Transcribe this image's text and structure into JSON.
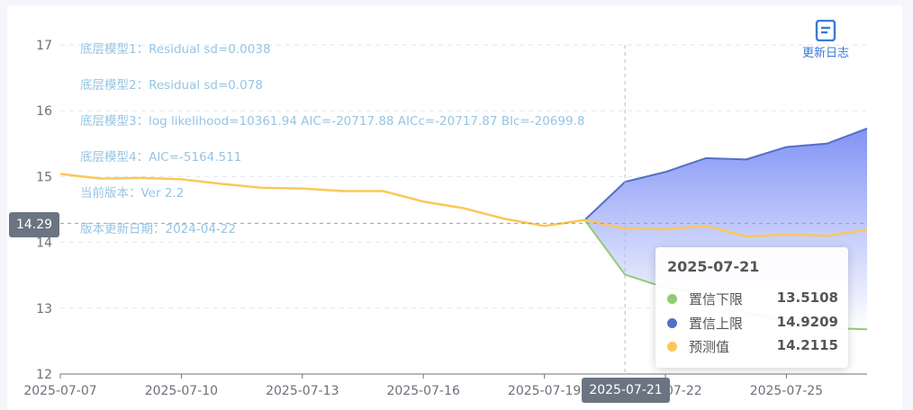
{
  "annotations": {
    "model1": "底层模型1：Residual sd=0.0038",
    "model2": "底层模型2：Residual sd=0.078",
    "model3": "底层模型3：log likelihood=10361.94 AIC=-20717.88 AICc=-20717.87 BIc=-20699.8",
    "model4": "底层模型4：AIC=-5164.511",
    "version": "当前版本：Ver 2.2",
    "update_date": "版本更新日期：2024-04-22"
  },
  "toolbar": {
    "changelog_label": "更新日志",
    "changelog_icon": "document-list-icon"
  },
  "axis_pointer": {
    "y_label": "14.29",
    "x_label": "2025-07-21"
  },
  "tooltip": {
    "title": "2025-07-21",
    "rows": [
      {
        "name": "置信下限",
        "value": "13.5108",
        "color": "#91cc75"
      },
      {
        "name": "置信上限",
        "value": "14.9209",
        "color": "#5470c6"
      },
      {
        "name": "预测值",
        "value": "14.2115",
        "color": "#fac858"
      }
    ]
  },
  "chart_data": {
    "type": "line",
    "x": [
      "2025-07-07",
      "2025-07-08",
      "2025-07-09",
      "2025-07-10",
      "2025-07-11",
      "2025-07-12",
      "2025-07-13",
      "2025-07-14",
      "2025-07-15",
      "2025-07-16",
      "2025-07-17",
      "2025-07-18",
      "2025-07-19",
      "2025-07-20",
      "2025-07-21",
      "2025-07-22",
      "2025-07-23",
      "2025-07-24",
      "2025-07-25",
      "2025-07-26",
      "2025-07-27"
    ],
    "x_tick_labels": [
      "2025-07-07",
      "2025-07-10",
      "2025-07-13",
      "2025-07-16",
      "2025-07-19",
      "2025-07-22",
      "2025-07-25"
    ],
    "ylim": [
      12,
      17
    ],
    "y_ticks": [
      12,
      13,
      14,
      15,
      16,
      17
    ],
    "grid": true,
    "legend": "none",
    "series": [
      {
        "name": "预测值",
        "color": "#fac858",
        "values": [
          15.04,
          14.97,
          14.98,
          14.96,
          14.89,
          14.83,
          14.82,
          14.78,
          14.78,
          14.62,
          14.52,
          14.36,
          14.25,
          14.34,
          14.21,
          14.2,
          14.25,
          14.09,
          14.12,
          14.1,
          14.19
        ]
      },
      {
        "name": "置信上限",
        "color": "#5470c6",
        "values": [
          null,
          null,
          null,
          null,
          null,
          null,
          null,
          null,
          null,
          null,
          null,
          null,
          null,
          14.34,
          14.92,
          15.07,
          15.28,
          15.26,
          15.45,
          15.5,
          15.73
        ]
      },
      {
        "name": "置信下限",
        "color": "#91cc75",
        "values": [
          null,
          null,
          null,
          null,
          null,
          null,
          null,
          null,
          null,
          null,
          null,
          null,
          null,
          14.34,
          13.51,
          13.31,
          13.23,
          12.93,
          12.8,
          12.7,
          12.68
        ]
      }
    ],
    "axis_pointer": {
      "x": "2025-07-21",
      "y": 14.29
    }
  }
}
